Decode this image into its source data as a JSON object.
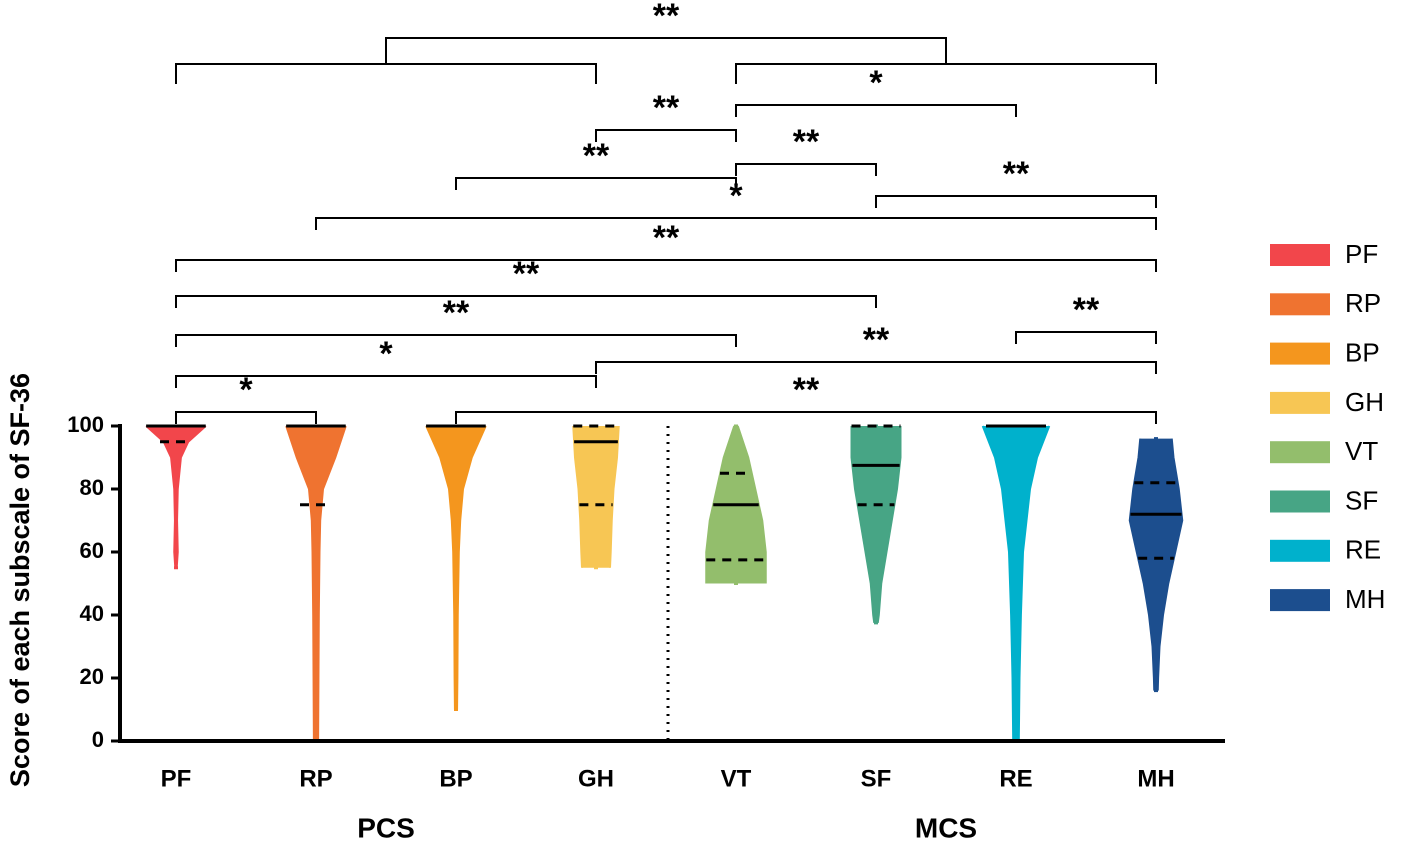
{
  "chart_data": {
    "type": "violin",
    "y_label": "Score of each subscale of SF-36",
    "categories": [
      "PF",
      "RP",
      "BP",
      "GH",
      "VT",
      "SF",
      "RE",
      "MH"
    ],
    "groups": [
      {
        "name": "PCS",
        "from": "PF",
        "to": "GH"
      },
      {
        "name": "MCS",
        "from": "VT",
        "to": "MH"
      }
    ],
    "ylim": [
      0,
      100
    ],
    "yticks": [
      0,
      20,
      40,
      60,
      80,
      100
    ],
    "legend": "right",
    "series": [
      {
        "name": "PF",
        "color": "#f2464b",
        "min": 55,
        "q1": 95,
        "median": 100,
        "q3": 100,
        "max": 100,
        "profile_y": [
          100,
          95,
          90,
          80,
          70,
          60,
          55
        ],
        "profile_width": [
          0.85,
          0.35,
          0.14,
          0.05,
          0.03,
          0.05,
          0.02
        ]
      },
      {
        "name": "RP",
        "color": "#ef7330",
        "min": 0,
        "q1": 75,
        "median": 100,
        "q3": 100,
        "max": 100,
        "profile_y": [
          100,
          90,
          80,
          70,
          60,
          40,
          20,
          0
        ],
        "profile_width": [
          0.85,
          0.55,
          0.2,
          0.12,
          0.1,
          0.08,
          0.07,
          0.06
        ]
      },
      {
        "name": "BP",
        "color": "#f4961e",
        "min": 10,
        "q1": 100,
        "median": 100,
        "q3": 100,
        "max": 100,
        "profile_y": [
          100,
          90,
          80,
          70,
          60,
          40,
          20,
          10
        ],
        "profile_width": [
          0.85,
          0.45,
          0.2,
          0.12,
          0.08,
          0.05,
          0.04,
          0.03
        ]
      },
      {
        "name": "GH",
        "color": "#f7c654",
        "min": 55,
        "q1": 75,
        "median": 95,
        "q3": 100,
        "max": 100,
        "profile_y": [
          100,
          90,
          80,
          70,
          60,
          55
        ],
        "profile_width": [
          0.65,
          0.6,
          0.5,
          0.45,
          0.42,
          0.4
        ]
      },
      {
        "name": "VT",
        "color": "#93be6c",
        "min": 50,
        "q1": 57.5,
        "median": 75,
        "q3": 85,
        "max": 100,
        "profile_y": [
          100,
          90,
          80,
          70,
          60,
          50
        ],
        "profile_width": [
          0.05,
          0.35,
          0.55,
          0.75,
          0.85,
          0.85
        ]
      },
      {
        "name": "SF",
        "color": "#47a585",
        "min": 37.5,
        "q1": 75,
        "median": 87.5,
        "q3": 100,
        "max": 100,
        "profile_y": [
          100,
          90,
          80,
          70,
          60,
          50,
          40,
          37.5
        ],
        "profile_width": [
          0.7,
          0.7,
          0.6,
          0.45,
          0.3,
          0.15,
          0.08,
          0.05
        ]
      },
      {
        "name": "RE",
        "color": "#00b1cc",
        "min": 0,
        "q1": 100,
        "median": 100,
        "q3": 100,
        "max": 100,
        "profile_y": [
          100,
          90,
          80,
          70,
          60,
          40,
          20,
          0
        ],
        "profile_width": [
          0.95,
          0.6,
          0.4,
          0.3,
          0.2,
          0.14,
          0.1,
          0.08
        ]
      },
      {
        "name": "MH",
        "color": "#1c4e8e",
        "min": 16,
        "q1": 58,
        "median": 72,
        "q3": 82,
        "max": 96,
        "profile_y": [
          96,
          90,
          80,
          70,
          60,
          50,
          40,
          30,
          20,
          16
        ],
        "profile_width": [
          0.45,
          0.5,
          0.65,
          0.75,
          0.55,
          0.35,
          0.2,
          0.1,
          0.06,
          0.05
        ]
      }
    ],
    "comparisons": [
      {
        "from": "PF",
        "to": "RP",
        "label": "*"
      },
      {
        "from": "BP",
        "to": "MH",
        "label": "**"
      },
      {
        "from": "PF",
        "to": "GH",
        "label": "*"
      },
      {
        "from": "GH",
        "to": "MH",
        "label": "**"
      },
      {
        "from": "RE",
        "to": "MH",
        "label": "**"
      },
      {
        "from": "PF",
        "to": "VT",
        "label": "**"
      },
      {
        "from": "PF",
        "to": "SF",
        "label": "**"
      },
      {
        "from": "PF",
        "to": "MH",
        "label": "**"
      },
      {
        "from": "RP",
        "to": "MH",
        "label": "*"
      },
      {
        "from": "SF",
        "to": "MH",
        "label": "**"
      },
      {
        "from": "BP",
        "to": "VT",
        "label": "**"
      },
      {
        "from": "VT",
        "to": "SF",
        "label": "**"
      },
      {
        "from": "GH",
        "to": "VT",
        "label": "**"
      },
      {
        "from": "VT",
        "to": "RE",
        "label": "*"
      },
      {
        "from": "PCS",
        "to": "MCS",
        "label": "**"
      }
    ]
  }
}
